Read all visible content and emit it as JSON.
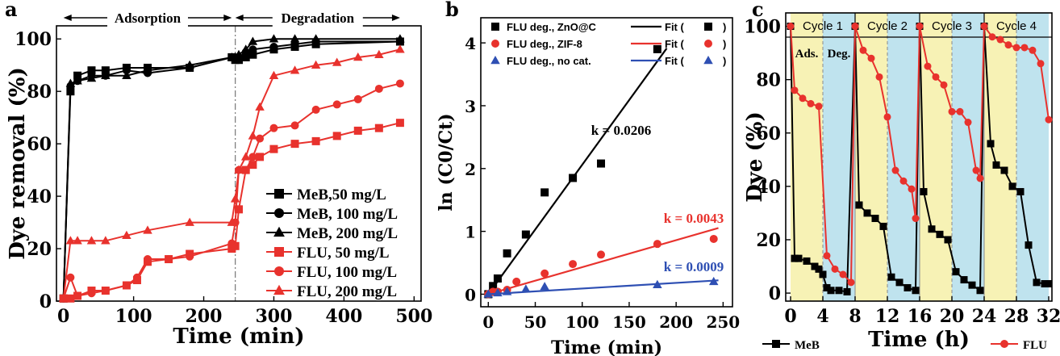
{
  "colors": {
    "black": "#000000",
    "red": "#e8322d",
    "blue": "#2e4fb3",
    "yellow_band": "#f7f2b5",
    "blue_band": "#bfe3ee"
  },
  "chart_data": [
    {
      "panel": "a",
      "type": "line",
      "title": "",
      "xlabel": "Time  (min)",
      "ylabel": "Dye removal (%)",
      "xlim": [
        -10,
        510
      ],
      "ylim": [
        0,
        105
      ],
      "xticks": [
        0,
        100,
        200,
        300,
        400,
        500
      ],
      "yticks": [
        0,
        20,
        40,
        60,
        80,
        100
      ],
      "legend_position": "bottom-right",
      "annotations": [
        {
          "text": "Adsorption",
          "x_from": 0,
          "x_to": 240,
          "y": 101
        },
        {
          "text": "Degradation",
          "x_from": 245,
          "x_to": 480,
          "y": 101
        }
      ],
      "divider_x": 245,
      "series": [
        {
          "name": "MeB,50 mg/L",
          "color": "#000000",
          "marker": "square",
          "points": [
            [
              0,
              1
            ],
            [
              10,
              80
            ],
            [
              20,
              86
            ],
            [
              40,
              88
            ],
            [
              60,
              88
            ],
            [
              90,
              89
            ],
            [
              120,
              89
            ],
            [
              180,
              89
            ],
            [
              240,
              93
            ],
            [
              245,
              92
            ],
            [
              250,
              92
            ],
            [
              260,
              93
            ],
            [
              270,
              94
            ],
            [
              300,
              96
            ],
            [
              330,
              97
            ],
            [
              360,
              98
            ],
            [
              480,
              99
            ]
          ]
        },
        {
          "name": "MeB, 100 mg/L",
          "color": "#000000",
          "marker": "circle",
          "points": [
            [
              0,
              1
            ],
            [
              10,
              82
            ],
            [
              20,
              84
            ],
            [
              40,
              86
            ],
            [
              60,
              86
            ],
            [
              90,
              88
            ],
            [
              120,
              87
            ],
            [
              180,
              89
            ],
            [
              240,
              93
            ],
            [
              245,
              93
            ],
            [
              250,
              93
            ],
            [
              260,
              95
            ],
            [
              270,
              96
            ],
            [
              300,
              97
            ],
            [
              330,
              98
            ],
            [
              360,
              99
            ],
            [
              480,
              99
            ]
          ]
        },
        {
          "name": "MeB, 200 mg/L",
          "color": "#000000",
          "marker": "triangle",
          "points": [
            [
              0,
              1
            ],
            [
              10,
              83
            ],
            [
              20,
              84
            ],
            [
              40,
              85
            ],
            [
              60,
              86
            ],
            [
              90,
              86
            ],
            [
              120,
              88
            ],
            [
              180,
              90
            ],
            [
              240,
              93
            ],
            [
              245,
              93
            ],
            [
              250,
              94
            ],
            [
              260,
              96
            ],
            [
              270,
              99
            ],
            [
              300,
              100
            ],
            [
              330,
              100
            ],
            [
              360,
              100
            ],
            [
              480,
              100
            ]
          ]
        },
        {
          "name": "FLU, 50 mg/L",
          "color": "#e8322d",
          "marker": "square",
          "points": [
            [
              0,
              1
            ],
            [
              10,
              1
            ],
            [
              20,
              2
            ],
            [
              40,
              4
            ],
            [
              60,
              4
            ],
            [
              90,
              6
            ],
            [
              105,
              8
            ],
            [
              120,
              15
            ],
            [
              150,
              16
            ],
            [
              180,
              18
            ],
            [
              240,
              20
            ],
            [
              245,
              21
            ],
            [
              250,
              35
            ],
            [
              260,
              50
            ],
            [
              270,
              52
            ],
            [
              280,
              55
            ],
            [
              300,
              58
            ],
            [
              330,
              60
            ],
            [
              360,
              61
            ],
            [
              390,
              63
            ],
            [
              420,
              65
            ],
            [
              450,
              66
            ],
            [
              480,
              68
            ]
          ]
        },
        {
          "name": "FLU, 100 mg/L",
          "color": "#e8322d",
          "marker": "circle",
          "points": [
            [
              0,
              1
            ],
            [
              10,
              9
            ],
            [
              20,
              2
            ],
            [
              40,
              3
            ],
            [
              60,
              4
            ],
            [
              90,
              6
            ],
            [
              105,
              9
            ],
            [
              120,
              16
            ],
            [
              150,
              16
            ],
            [
              180,
              17
            ],
            [
              240,
              22
            ],
            [
              245,
              30
            ],
            [
              250,
              50
            ],
            [
              260,
              50
            ],
            [
              270,
              55
            ],
            [
              280,
              62
            ],
            [
              300,
              66
            ],
            [
              330,
              67
            ],
            [
              360,
              73
            ],
            [
              390,
              75
            ],
            [
              420,
              77
            ],
            [
              450,
              81
            ],
            [
              480,
              83
            ]
          ]
        },
        {
          "name": "FLU, 200 mg/L",
          "color": "#e8322d",
          "marker": "triangle",
          "points": [
            [
              0,
              1
            ],
            [
              10,
              23
            ],
            [
              20,
              23
            ],
            [
              40,
              23
            ],
            [
              60,
              23
            ],
            [
              90,
              25
            ],
            [
              120,
              27
            ],
            [
              180,
              30
            ],
            [
              240,
              30
            ],
            [
              245,
              39
            ],
            [
              250,
              50
            ],
            [
              260,
              55
            ],
            [
              270,
              63
            ],
            [
              280,
              74
            ],
            [
              300,
              86
            ],
            [
              330,
              88
            ],
            [
              360,
              90
            ],
            [
              390,
              91
            ],
            [
              420,
              93
            ],
            [
              450,
              94
            ],
            [
              480,
              96
            ]
          ]
        }
      ]
    },
    {
      "panel": "b",
      "type": "scatter",
      "title": "",
      "xlabel": "Time (min)",
      "ylabel": "ln (C0/Ct)",
      "xlim": [
        -8,
        260
      ],
      "ylim": [
        -0.2,
        4.4
      ],
      "xticks": [
        0,
        50,
        100,
        150,
        200,
        250
      ],
      "yticks": [
        0,
        1,
        2,
        3,
        4
      ],
      "legend_position": "top",
      "series": [
        {
          "name": "FLU deg., ZnO@C",
          "fit_label": "Fit (",
          "color": "#000000",
          "marker": "square",
          "k_label": "k = 0.0206",
          "slope": 0.0206,
          "points": [
            [
              0,
              0
            ],
            [
              5,
              0.13
            ],
            [
              10,
              0.25
            ],
            [
              20,
              0.65
            ],
            [
              40,
              0.95
            ],
            [
              60,
              1.62
            ],
            [
              90,
              1.85
            ],
            [
              120,
              2.08
            ],
            [
              180,
              3.9
            ]
          ]
        },
        {
          "name": "FLU deg., ZIF-8",
          "fit_label": "Fit (",
          "color": "#e8322d",
          "marker": "circle",
          "k_label": "k = 0.0043",
          "slope": 0.0043,
          "points": [
            [
              0,
              0
            ],
            [
              5,
              0.04
            ],
            [
              10,
              0.04
            ],
            [
              20,
              0.07
            ],
            [
              30,
              0.2
            ],
            [
              60,
              0.33
            ],
            [
              90,
              0.48
            ],
            [
              120,
              0.63
            ],
            [
              180,
              0.8
            ],
            [
              240,
              0.88
            ]
          ]
        },
        {
          "name": "FLU deg., no cat.",
          "fit_label": "Fit (",
          "color": "#2e4fb3",
          "marker": "triangle",
          "k_label": "k = 0.0009",
          "slope": 0.0009,
          "points": [
            [
              0,
              0
            ],
            [
              10,
              0.02
            ],
            [
              20,
              0.04
            ],
            [
              40,
              0.08
            ],
            [
              60,
              0.12
            ],
            [
              180,
              0.15
            ],
            [
              240,
              0.2
            ]
          ]
        }
      ]
    },
    {
      "panel": "c",
      "type": "line",
      "title": "",
      "xlabel": "Time (h)",
      "ylabel": "Dye (%)",
      "xlim": [
        -0.6,
        32.4
      ],
      "ylim": [
        -3,
        105
      ],
      "xticks": [
        0,
        4,
        8,
        12,
        16,
        20,
        24,
        28,
        32
      ],
      "yticks": [
        0,
        20,
        40,
        60,
        80,
        100
      ],
      "cycles": [
        "Cycle 1",
        "Cycle 2",
        "Cycle 3",
        "Cycle 4"
      ],
      "phases": [
        "Ads.",
        "Deg."
      ],
      "legend_position": "bottom",
      "series": [
        {
          "name": "MeB",
          "color": "#000000",
          "marker": "square",
          "points": [
            [
              0,
              100
            ],
            [
              0.5,
              13
            ],
            [
              1,
              13
            ],
            [
              2,
              12
            ],
            [
              3,
              10
            ],
            [
              3.5,
              9
            ],
            [
              4,
              7
            ],
            [
              4.5,
              2
            ],
            [
              5,
              1
            ],
            [
              6,
              1
            ],
            [
              7,
              0.5
            ],
            [
              8,
              100
            ],
            [
              8.5,
              33
            ],
            [
              9.5,
              30
            ],
            [
              10.5,
              28
            ],
            [
              11.5,
              25
            ],
            [
              12.5,
              6
            ],
            [
              13.5,
              4
            ],
            [
              14.5,
              2
            ],
            [
              15.5,
              1
            ],
            [
              16,
              100
            ],
            [
              16.5,
              38
            ],
            [
              17.5,
              24
            ],
            [
              18.5,
              22
            ],
            [
              19.5,
              20
            ],
            [
              20.5,
              8
            ],
            [
              21.5,
              5
            ],
            [
              22.5,
              3
            ],
            [
              23.5,
              1
            ],
            [
              24,
              100
            ],
            [
              24.8,
              56
            ],
            [
              25.5,
              48
            ],
            [
              26.5,
              46
            ],
            [
              27.5,
              40
            ],
            [
              28.5,
              38
            ],
            [
              29.5,
              18
            ],
            [
              30.5,
              4
            ],
            [
              31.5,
              3.5
            ],
            [
              32,
              3.5
            ]
          ]
        },
        {
          "name": "FLU",
          "color": "#e8322d",
          "marker": "circle",
          "points": [
            [
              0,
              100
            ],
            [
              0.5,
              76
            ],
            [
              1.5,
              73
            ],
            [
              2.5,
              71
            ],
            [
              3.5,
              70
            ],
            [
              4.5,
              14
            ],
            [
              5.5,
              9
            ],
            [
              6.5,
              7
            ],
            [
              7.5,
              4
            ],
            [
              8,
              100
            ],
            [
              9,
              91
            ],
            [
              10,
              88
            ],
            [
              11,
              81
            ],
            [
              12,
              66
            ],
            [
              13,
              46
            ],
            [
              14,
              42
            ],
            [
              15,
              39
            ],
            [
              15.5,
              28
            ],
            [
              16,
              100
            ],
            [
              17,
              85
            ],
            [
              18,
              81
            ],
            [
              19,
              78
            ],
            [
              20,
              68
            ],
            [
              21,
              68
            ],
            [
              22,
              64
            ],
            [
              23,
              46
            ],
            [
              23.5,
              43
            ],
            [
              24,
              100
            ],
            [
              25,
              96
            ],
            [
              26,
              95
            ],
            [
              27,
              93
            ],
            [
              28,
              92
            ],
            [
              29,
              92
            ],
            [
              30,
              91
            ],
            [
              31,
              86
            ],
            [
              32,
              65
            ]
          ]
        }
      ]
    }
  ]
}
